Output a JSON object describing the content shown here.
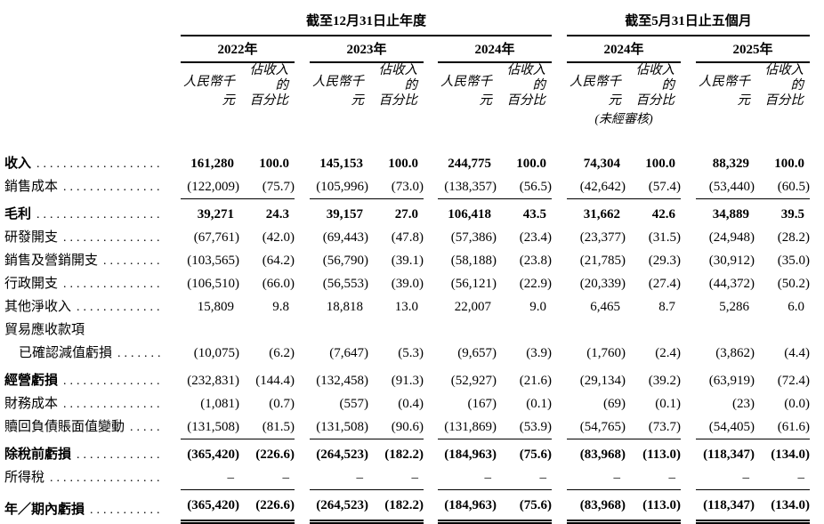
{
  "table": {
    "header": {
      "groups": [
        {
          "title": "截至12月31日止年度"
        },
        {
          "title": "截至5月31日止五個月"
        }
      ],
      "years": [
        "2022年",
        "2023年",
        "2024年",
        "2024年",
        "2025年"
      ],
      "unit_label": "人民幣千元",
      "pct_label_line1": "佔收入的",
      "pct_label_line2": "百分比",
      "unaudited_note": "(未經審核)"
    },
    "rows": [
      {
        "label": "收入",
        "leaders": true,
        "bold_label": true,
        "bold_values": true,
        "values": [
          "161,280",
          "100.0",
          "145,153",
          "100.0",
          "244,775",
          "100.0",
          "74,304",
          "100.0",
          "88,329",
          "100.0"
        ]
      },
      {
        "label": "銷售成本",
        "leaders": true,
        "rule_below": true,
        "values": [
          "(122,009)",
          "(75.7)",
          "(105,996)",
          "(73.0)",
          "(138,357)",
          "(56.5)",
          "(42,642)",
          "(57.4)",
          "(53,440)",
          "(60.5)"
        ]
      },
      {
        "label": "毛利",
        "leaders": true,
        "bold_label": true,
        "bold_values": true,
        "extra_top": true,
        "values": [
          "39,271",
          "24.3",
          "39,157",
          "27.0",
          "106,418",
          "43.5",
          "31,662",
          "42.6",
          "34,889",
          "39.5"
        ]
      },
      {
        "label": "研發開支",
        "leaders": true,
        "values": [
          "(67,761)",
          "(42.0)",
          "(69,443)",
          "(47.8)",
          "(57,386)",
          "(23.4)",
          "(23,377)",
          "(31.5)",
          "(24,948)",
          "(28.2)"
        ]
      },
      {
        "label": "銷售及營銷開支",
        "leaders": true,
        "values": [
          "(103,565)",
          "(64.2)",
          "(56,790)",
          "(39.1)",
          "(58,188)",
          "(23.8)",
          "(21,785)",
          "(29.3)",
          "(30,912)",
          "(35.0)"
        ]
      },
      {
        "label": "行政開支",
        "leaders": true,
        "values": [
          "(106,510)",
          "(66.0)",
          "(56,553)",
          "(39.0)",
          "(56,121)",
          "(22.9)",
          "(20,339)",
          "(27.4)",
          "(44,372)",
          "(50.2)"
        ]
      },
      {
        "label": "其他淨收入",
        "leaders": true,
        "values": [
          "15,809",
          "9.8",
          "18,818",
          "13.0",
          "22,007",
          "9.0",
          "6,465",
          "8.7",
          "5,286",
          "6.0"
        ]
      },
      {
        "label": "貿易應收款項",
        "leaders": false,
        "values": null
      },
      {
        "label": "已確認減值虧損",
        "leaders": true,
        "indent": true,
        "values": [
          "(10,075)",
          "(6.2)",
          "(7,647)",
          "(5.3)",
          "(9,657)",
          "(3.9)",
          "(1,760)",
          "(2.4)",
          "(3,862)",
          "(4.4)"
        ]
      },
      {
        "label": "經營虧損",
        "leaders": true,
        "bold_label": true,
        "extra_top": true,
        "values": [
          "(232,831)",
          "(144.4)",
          "(132,458)",
          "(91.3)",
          "(52,927)",
          "(21.6)",
          "(29,134)",
          "(39.2)",
          "(63,919)",
          "(72.4)"
        ]
      },
      {
        "label": "財務成本",
        "leaders": true,
        "values": [
          "(1,081)",
          "(0.7)",
          "(557)",
          "(0.4)",
          "(167)",
          "(0.1)",
          "(69)",
          "(0.1)",
          "(23)",
          "(0.0)"
        ]
      },
      {
        "label": "贖回負債賬面值變動",
        "leaders": true,
        "rule_below": true,
        "values": [
          "(131,508)",
          "(81.5)",
          "(131,508)",
          "(90.6)",
          "(131,869)",
          "(53.9)",
          "(54,765)",
          "(73.7)",
          "(54,405)",
          "(61.6)"
        ]
      },
      {
        "label": "除稅前虧損",
        "leaders": true,
        "bold_label": true,
        "bold_values": true,
        "extra_top": true,
        "values": [
          "(365,420)",
          "(226.6)",
          "(264,523)",
          "(182.2)",
          "(184,963)",
          "(75.6)",
          "(83,968)",
          "(113.0)",
          "(118,347)",
          "(134.0)"
        ]
      },
      {
        "label": "所得稅",
        "leaders": true,
        "rule_below": true,
        "values": [
          "–",
          "–",
          "–",
          "–",
          "–",
          "–",
          "–",
          "–",
          "–",
          "–"
        ]
      },
      {
        "label": "年／期內虧損",
        "leaders": true,
        "bold_label": true,
        "bold_values": true,
        "extra_top": true,
        "double_rule_below": true,
        "values": [
          "(365,420)",
          "(226.6)",
          "(264,523)",
          "(182.2)",
          "(184,963)",
          "(75.6)",
          "(83,968)",
          "(113.0)",
          "(118,347)",
          "(134.0)"
        ]
      }
    ]
  }
}
